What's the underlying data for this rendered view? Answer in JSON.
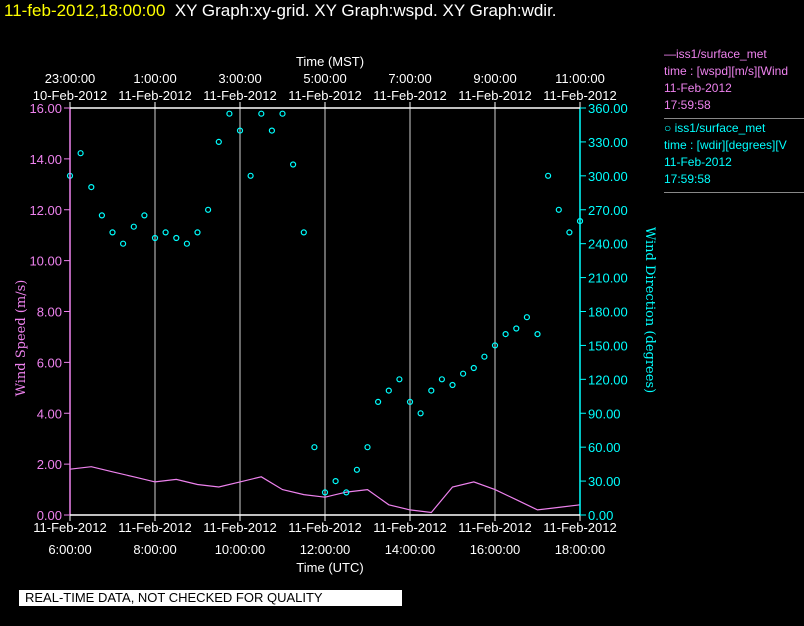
{
  "header": {
    "timestamp": "11-feb-2012,18:00:00",
    "titles": "XY Graph:xy-grid.  XY Graph:wspd.  XY Graph:wdir."
  },
  "legend": {
    "entries": [
      {
        "name": "—iss1/surface_met",
        "line2": "time : [wspd][m/s][Wind",
        "date": "11-Feb-2012",
        "time": "17:59:58",
        "color": "#ee82ee"
      },
      {
        "name": "○ iss1/surface_met",
        "line2": "time : [wdir][degrees][V",
        "date": "11-Feb-2012",
        "time": "17:59:58",
        "color": "#00ffff"
      }
    ]
  },
  "footer": {
    "notice": "REAL-TIME DATA, NOT CHECKED FOR QUALITY"
  },
  "chart_data": {
    "type": "line",
    "x_top_label": "Time (MST)",
    "x_bottom_label": "Time (UTC)",
    "y_left_label": "Wind Speed (m/s)",
    "y_right_label": "Wind Direction (degrees)",
    "xlim_utc_hours": [
      6,
      18
    ],
    "y_left_range": [
      0,
      16
    ],
    "y_right_range": [
      0,
      360
    ],
    "grid": true,
    "top_ticks": [
      {
        "time": "23:00:00",
        "date": "10-Feb-2012"
      },
      {
        "time": "1:00:00",
        "date": "11-Feb-2012"
      },
      {
        "time": "3:00:00",
        "date": "11-Feb-2012"
      },
      {
        "time": "5:00:00",
        "date": "11-Feb-2012"
      },
      {
        "time": "7:00:00",
        "date": "11-Feb-2012"
      },
      {
        "time": "9:00:00",
        "date": "11-Feb-2012"
      },
      {
        "time": "11:00:00",
        "date": "11-Feb-2012"
      }
    ],
    "bottom_ticks": [
      {
        "time": "6:00:00",
        "date": "11-Feb-2012"
      },
      {
        "time": "8:00:00",
        "date": "11-Feb-2012"
      },
      {
        "time": "10:00:00",
        "date": "11-Feb-2012"
      },
      {
        "time": "12:00:00",
        "date": "11-Feb-2012"
      },
      {
        "time": "14:00:00",
        "date": "11-Feb-2012"
      },
      {
        "time": "16:00:00",
        "date": "11-Feb-2012"
      },
      {
        "time": "18:00:00",
        "date": "11-Feb-2012"
      }
    ],
    "left_ticks": [
      "0.00",
      "2.00",
      "4.00",
      "6.00",
      "8.00",
      "10.00",
      "12.00",
      "14.00",
      "16.00"
    ],
    "right_ticks": [
      "0.00",
      "30.00",
      "60.00",
      "90.00",
      "120.00",
      "150.00",
      "180.00",
      "210.00",
      "240.00",
      "270.00",
      "300.00",
      "330.00",
      "360.00"
    ],
    "series": [
      {
        "name": "iss1/surface_met time : [wspd][m/s]",
        "axis": "left",
        "style": "line",
        "color": "#ee82ee",
        "x": [
          6.0,
          6.5,
          7.0,
          7.5,
          8.0,
          8.5,
          9.0,
          9.5,
          10.0,
          10.5,
          11.0,
          11.5,
          12.0,
          12.5,
          13.0,
          13.5,
          14.0,
          14.5,
          15.0,
          15.5,
          16.0,
          16.5,
          17.0,
          17.5,
          18.0
        ],
        "values": [
          1.8,
          1.9,
          1.7,
          1.5,
          1.3,
          1.4,
          1.2,
          1.1,
          1.3,
          1.5,
          1.0,
          0.8,
          0.7,
          0.9,
          1.0,
          0.4,
          0.2,
          0.1,
          1.1,
          1.3,
          1.0,
          0.6,
          0.2,
          0.3,
          0.4
        ]
      },
      {
        "name": "iss1/surface_met time : [wdir][degrees]",
        "axis": "right",
        "style": "scatter",
        "color": "#00ffff",
        "x": [
          6.0,
          6.25,
          6.5,
          6.75,
          7.0,
          7.25,
          7.5,
          7.75,
          8.0,
          8.25,
          8.5,
          8.75,
          9.0,
          9.25,
          9.5,
          9.75,
          10.0,
          10.25,
          10.5,
          10.75,
          11.0,
          11.25,
          11.5,
          11.75,
          12.0,
          12.25,
          12.5,
          12.75,
          13.0,
          13.25,
          13.5,
          13.75,
          14.0,
          14.25,
          14.5,
          14.75,
          15.0,
          15.25,
          15.5,
          15.75,
          16.0,
          16.25,
          16.5,
          16.75,
          17.0,
          17.25,
          17.5,
          17.75,
          18.0
        ],
        "values": [
          300,
          320,
          290,
          265,
          250,
          240,
          255,
          265,
          245,
          250,
          245,
          240,
          250,
          270,
          330,
          355,
          340,
          300,
          355,
          340,
          355,
          310,
          250,
          60,
          20,
          30,
          20,
          40,
          60,
          100,
          110,
          120,
          100,
          90,
          110,
          120,
          115,
          125,
          130,
          140,
          150,
          160,
          165,
          175,
          160,
          300,
          270,
          250,
          260
        ]
      }
    ]
  }
}
